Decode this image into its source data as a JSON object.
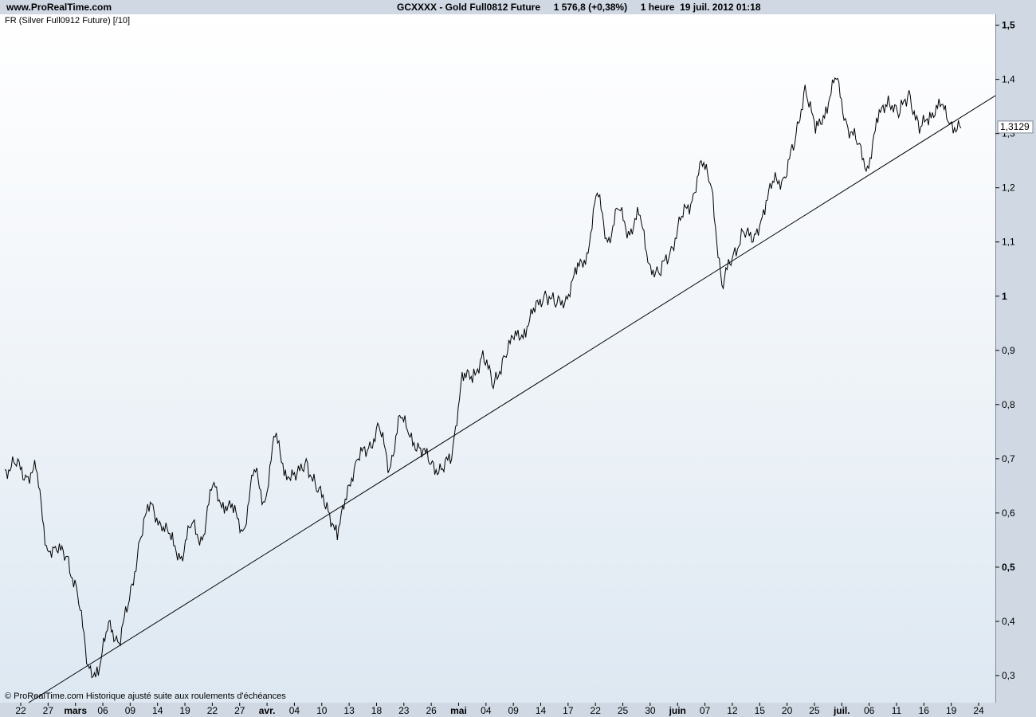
{
  "header": {
    "site": "www.ProRealTime.com",
    "title": "GCXXXX - Gold Full0812 Future     1 576,8 (+0,38%)     1 heure  19 juil. 2012 01:18"
  },
  "overlay_label": "FR (Silver Full0912 Future) [/10]",
  "copyright": "© ProRealTime.com  Historique ajusté suite aux roulements d'échéances",
  "chart_data": {
    "type": "line",
    "title": "GCXXXX - Gold Full0812 Future",
    "ylim": [
      0.25,
      1.52
    ],
    "y_ticks": [
      {
        "value": 1.5,
        "label": "1,5",
        "bold": true
      },
      {
        "value": 1.4,
        "label": "1,4",
        "bold": false
      },
      {
        "value": 1.3,
        "label": "1,3",
        "bold": false
      },
      {
        "value": 1.2,
        "label": "1,2",
        "bold": false
      },
      {
        "value": 1.1,
        "label": "1,1",
        "bold": false
      },
      {
        "value": 1.0,
        "label": "1",
        "bold": true
      },
      {
        "value": 0.9,
        "label": "0,9",
        "bold": false
      },
      {
        "value": 0.8,
        "label": "0,8",
        "bold": false
      },
      {
        "value": 0.7,
        "label": "0,7",
        "bold": false
      },
      {
        "value": 0.6,
        "label": "0,6",
        "bold": false
      },
      {
        "value": 0.5,
        "label": "0,5",
        "bold": true
      },
      {
        "value": 0.4,
        "label": "0,4",
        "bold": false
      },
      {
        "value": 0.3,
        "label": "0,3",
        "bold": false
      }
    ],
    "x_ticks": [
      {
        "label": "22",
        "bold": false
      },
      {
        "label": "27",
        "bold": false
      },
      {
        "label": "mars",
        "bold": true
      },
      {
        "label": "06",
        "bold": false
      },
      {
        "label": "09",
        "bold": false
      },
      {
        "label": "14",
        "bold": false
      },
      {
        "label": "19",
        "bold": false
      },
      {
        "label": "22",
        "bold": false
      },
      {
        "label": "27",
        "bold": false
      },
      {
        "label": "avr.",
        "bold": true
      },
      {
        "label": "04",
        "bold": false
      },
      {
        "label": "10",
        "bold": false
      },
      {
        "label": "13",
        "bold": false
      },
      {
        "label": "18",
        "bold": false
      },
      {
        "label": "23",
        "bold": false
      },
      {
        "label": "26",
        "bold": false
      },
      {
        "label": "mai",
        "bold": true
      },
      {
        "label": "04",
        "bold": false
      },
      {
        "label": "09",
        "bold": false
      },
      {
        "label": "14",
        "bold": false
      },
      {
        "label": "17",
        "bold": false
      },
      {
        "label": "22",
        "bold": false
      },
      {
        "label": "25",
        "bold": false
      },
      {
        "label": "30",
        "bold": false
      },
      {
        "label": "juin",
        "bold": true
      },
      {
        "label": "07",
        "bold": false
      },
      {
        "label": "12",
        "bold": false
      },
      {
        "label": "15",
        "bold": false
      },
      {
        "label": "20",
        "bold": false
      },
      {
        "label": "25",
        "bold": false
      },
      {
        "label": "juil.",
        "bold": true
      },
      {
        "label": "06",
        "bold": false
      },
      {
        "label": "11",
        "bold": false
      },
      {
        "label": "16",
        "bold": false
      },
      {
        "label": "19",
        "bold": false
      },
      {
        "label": "24",
        "bold": false
      }
    ],
    "last_value": 1.3129,
    "last_value_label": "1,3129",
    "series": [
      {
        "color": "#000000",
        "points": [
          [
            0,
            0.68
          ],
          [
            1,
            0.69
          ],
          [
            2,
            0.67
          ],
          [
            3,
            0.68
          ],
          [
            4,
            0.54
          ],
          [
            5,
            0.53
          ],
          [
            6,
            0.52
          ],
          [
            7,
            0.45
          ],
          [
            8,
            0.32
          ],
          [
            9,
            0.3
          ],
          [
            10,
            0.4
          ],
          [
            11,
            0.36
          ],
          [
            12,
            0.44
          ],
          [
            13,
            0.55
          ],
          [
            14,
            0.62
          ],
          [
            15,
            0.58
          ],
          [
            16,
            0.55
          ],
          [
            17,
            0.52
          ],
          [
            18,
            0.58
          ],
          [
            19,
            0.55
          ],
          [
            20,
            0.65
          ],
          [
            21,
            0.62
          ],
          [
            22,
            0.6
          ],
          [
            23,
            0.57
          ],
          [
            24,
            0.68
          ],
          [
            25,
            0.62
          ],
          [
            26,
            0.74
          ],
          [
            27,
            0.68
          ],
          [
            28,
            0.66
          ],
          [
            29,
            0.7
          ],
          [
            30,
            0.64
          ],
          [
            31,
            0.62
          ],
          [
            32,
            0.55
          ],
          [
            33,
            0.65
          ],
          [
            34,
            0.7
          ],
          [
            35,
            0.72
          ],
          [
            36,
            0.76
          ],
          [
            37,
            0.68
          ],
          [
            38,
            0.78
          ],
          [
            39,
            0.74
          ],
          [
            40,
            0.72
          ],
          [
            41,
            0.69
          ],
          [
            42,
            0.68
          ],
          [
            43,
            0.7
          ],
          [
            44,
            0.86
          ],
          [
            45,
            0.84
          ],
          [
            46,
            0.9
          ],
          [
            47,
            0.83
          ],
          [
            48,
            0.89
          ],
          [
            49,
            0.92
          ],
          [
            50,
            0.94
          ],
          [
            51,
            0.97
          ],
          [
            52,
            1.01
          ],
          [
            53,
            0.98
          ],
          [
            54,
            1.0
          ],
          [
            55,
            1.04
          ],
          [
            56,
            1.08
          ],
          [
            57,
            1.19
          ],
          [
            58,
            1.1
          ],
          [
            59,
            1.16
          ],
          [
            60,
            1.12
          ],
          [
            61,
            1.15
          ],
          [
            62,
            1.06
          ],
          [
            63,
            1.04
          ],
          [
            64,
            1.08
          ],
          [
            65,
            1.14
          ],
          [
            66,
            1.17
          ],
          [
            67,
            1.25
          ],
          [
            68,
            1.2
          ],
          [
            69,
            1.02
          ],
          [
            70,
            1.07
          ],
          [
            71,
            1.12
          ],
          [
            72,
            1.1
          ],
          [
            73,
            1.16
          ],
          [
            74,
            1.21
          ],
          [
            75,
            1.22
          ],
          [
            76,
            1.28
          ],
          [
            77,
            1.39
          ],
          [
            78,
            1.3
          ],
          [
            79,
            1.35
          ],
          [
            80,
            1.4
          ],
          [
            81,
            1.32
          ],
          [
            82,
            1.28
          ],
          [
            83,
            1.24
          ],
          [
            84,
            1.32
          ],
          [
            85,
            1.37
          ],
          [
            86,
            1.33
          ],
          [
            87,
            1.38
          ],
          [
            88,
            1.3
          ],
          [
            89,
            1.34
          ],
          [
            90,
            1.35
          ],
          [
            91,
            1.32
          ],
          [
            92,
            1.31
          ]
        ]
      }
    ],
    "trendline": [
      [
        0,
        0.25
      ],
      [
        95,
        1.37
      ]
    ]
  }
}
